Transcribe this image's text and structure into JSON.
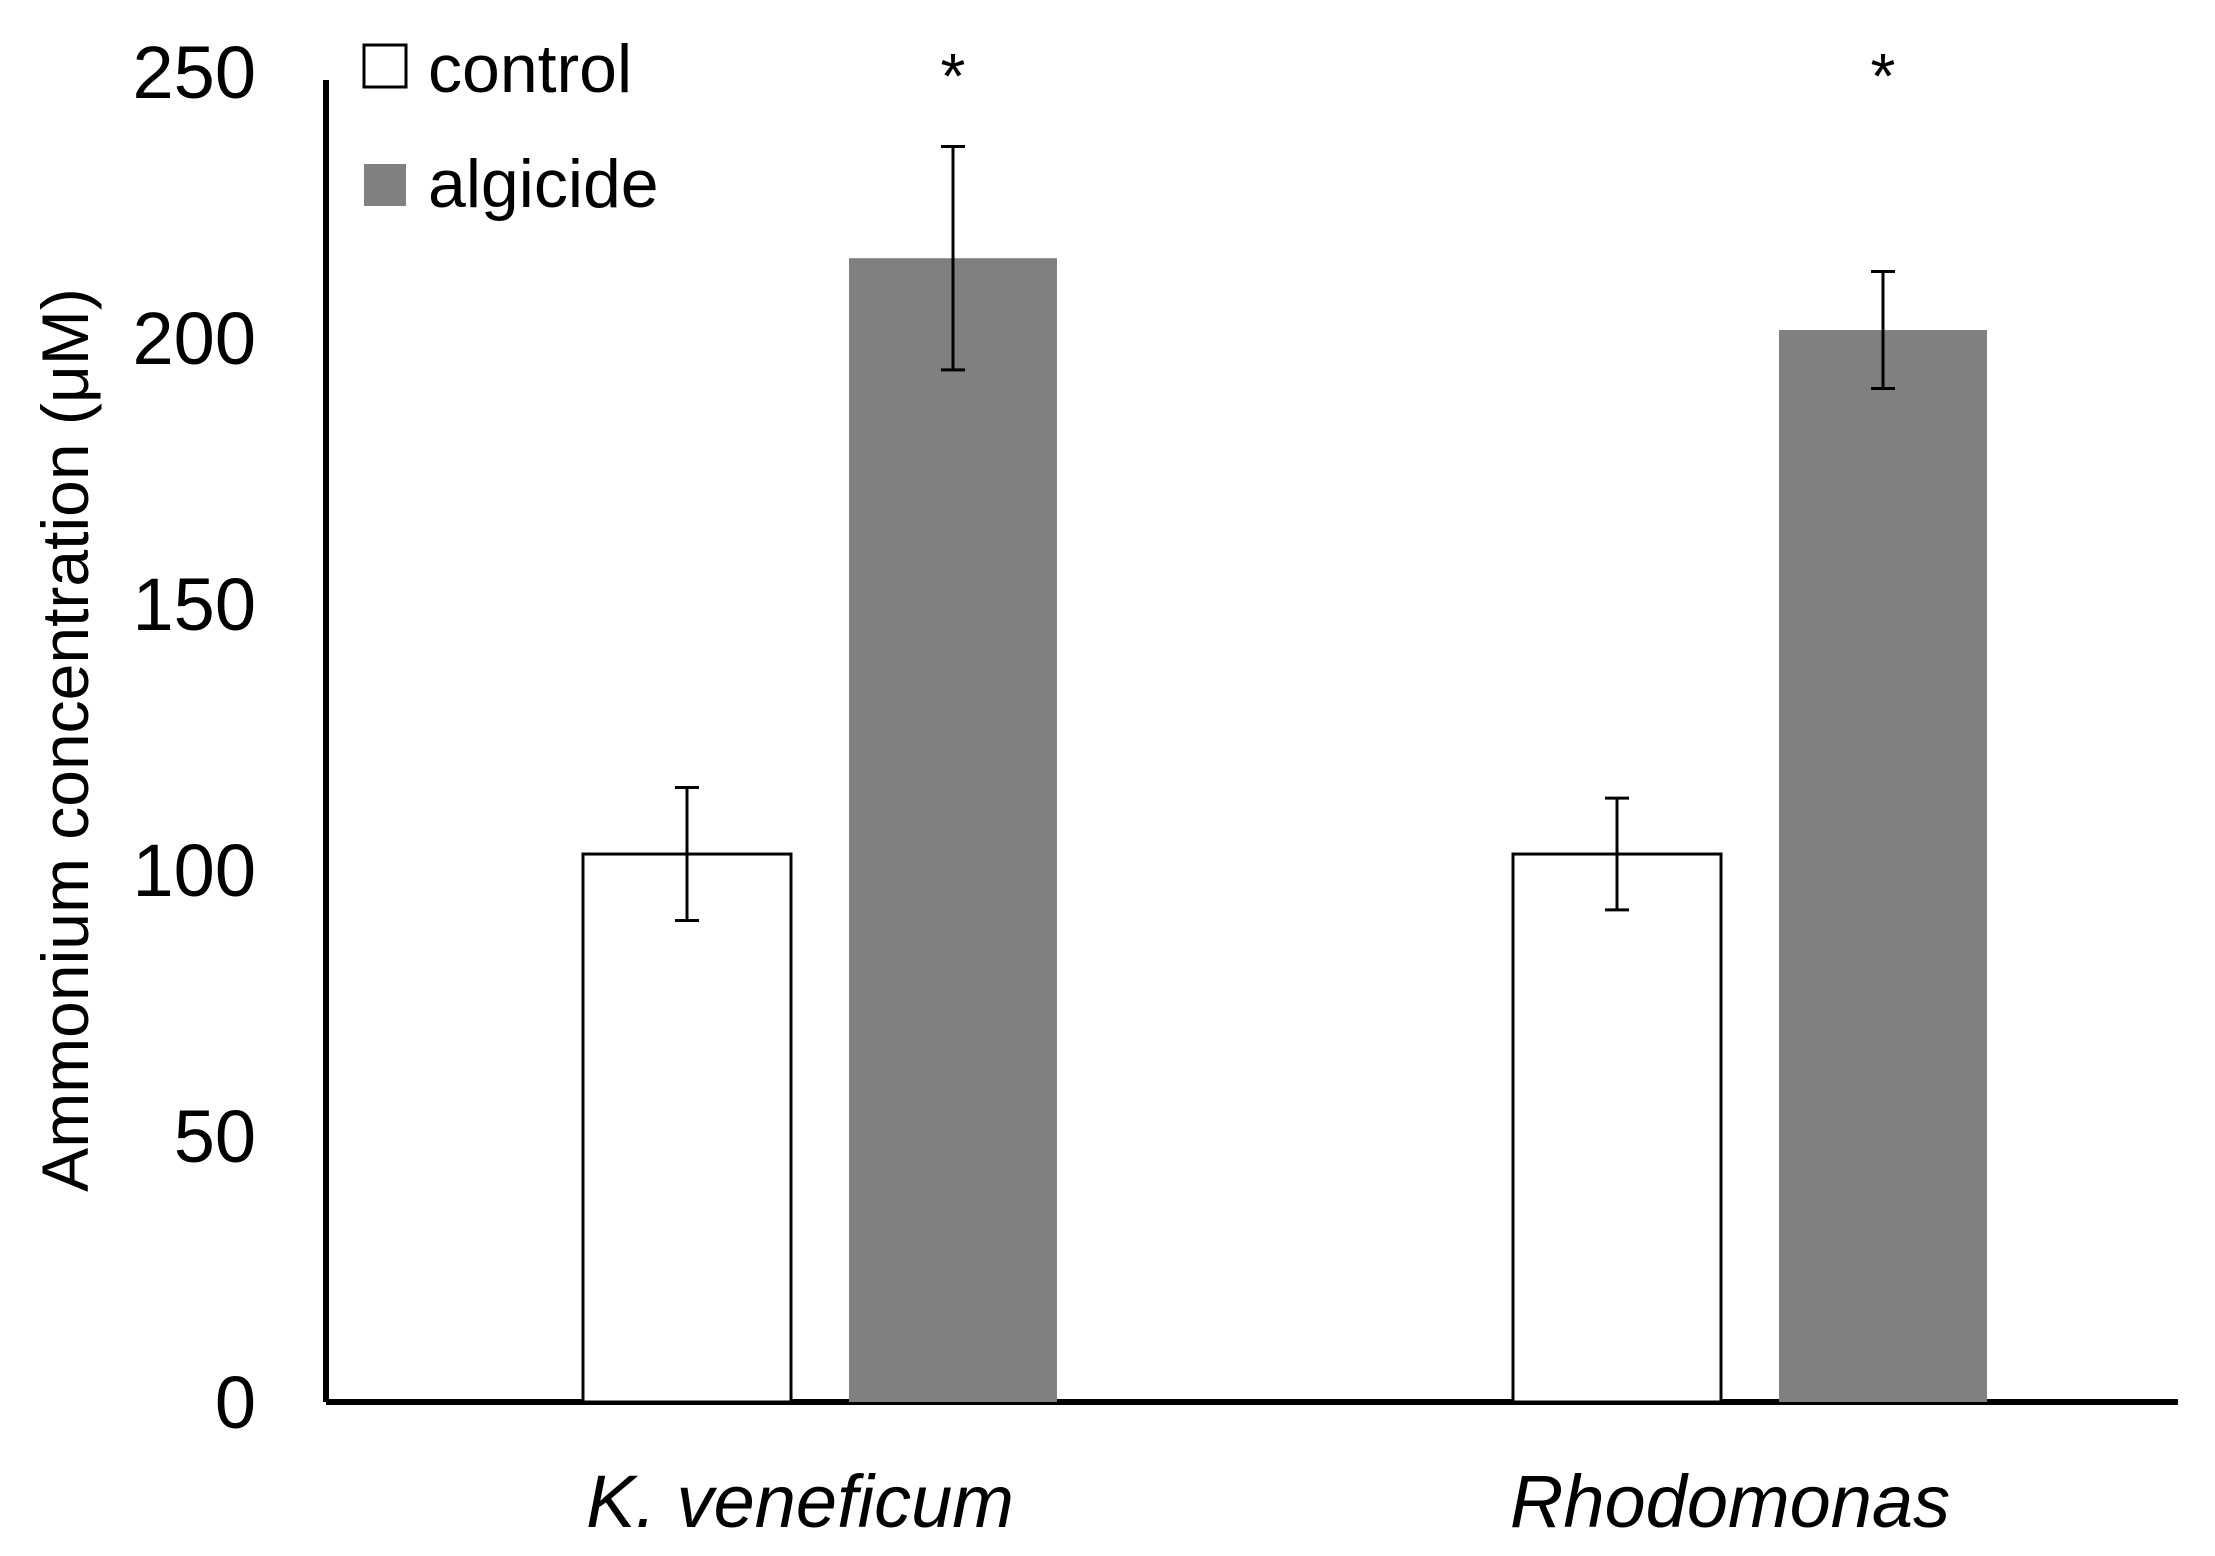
{
  "chart_data": {
    "type": "bar",
    "title": "",
    "xlabel": "",
    "ylabel": "Ammonium concentration (μM)",
    "ylim": [
      0,
      250
    ],
    "yticks": [
      0,
      50,
      100,
      150,
      200,
      250
    ],
    "ytick_labels": [
      "0",
      "50",
      "100",
      "150",
      "200",
      "250"
    ],
    "categories": [
      "K. veneficum",
      "Rhodomonas"
    ],
    "series": [
      {
        "name": "control",
        "color": "#ffffff",
        "edge_color": "#000000",
        "values": [
          103,
          103
        ],
        "errors": [
          12.5,
          10.5
        ],
        "significance": [
          "",
          ""
        ]
      },
      {
        "name": "algicide",
        "color": "#808080",
        "edge_color": "#808080",
        "values": [
          215,
          201.5
        ],
        "errors": [
          21,
          11
        ],
        "significance": [
          "*",
          "*"
        ]
      }
    ],
    "legend": {
      "position": "top-left",
      "entries": [
        {
          "label": "control",
          "swatch": "open-square"
        },
        {
          "label": "algicide",
          "swatch": "filled-square"
        }
      ]
    },
    "grid": false
  }
}
